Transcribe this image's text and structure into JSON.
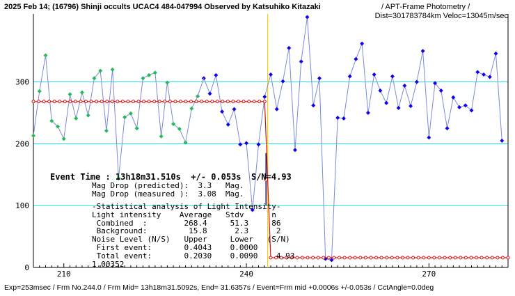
{
  "header": {
    "title": "2025 Feb 14; (16796) Shinji occults UCAC4 484-047994 Observed by Katsuhiko Kitazaki",
    "subtitle": "/ APT-Frame Photometry /",
    "subtitle2": "Dist=301783784km Veloc=13045m/sec"
  },
  "footer": {
    "text": "Exp=253msec / Frm No.244.0 / Frm Mid= 13h18m31.5092s, End= 31.6357s / Event=Frm mid +0.0006s +/-0.053s / CctAngle=0.0deg"
  },
  "stats": {
    "event_time": "Event Time : 13h18m31.510s  +/- 0.053s  S/N=4.93",
    "mag_pred": "Mag Drop (predicted):  3.3   Mag.",
    "mag_meas": "Mag Drop (measured ):  3.08  Mag.",
    "section": "-Statistical analysis of Light Intensity-",
    "head": "Light intensity    Average   Stdv      n",
    "combined": " Combined  :        268.4     51.3     86",
    "background": " Background:         15.8      2.3      2",
    "noise_head": "Noise Level (N/S)   Upper     Lower   (S/N)",
    "first": " First event:       0.4043    0.0000",
    "total": " Total event:       0.2030    0.0090    4.93",
    "extra": "1.00352"
  },
  "colors": {
    "green": "#22bb55",
    "blue": "#1100ee",
    "cyan": "#22dddd",
    "model": "#dd1111",
    "event": "#ffcc00",
    "axis": "#000000"
  },
  "chart_data": {
    "type": "line",
    "xlim": [
      205,
      283
    ],
    "ylim": [
      0,
      410
    ],
    "xticks": [
      210,
      240,
      270
    ],
    "yticks": [
      100,
      200,
      300
    ],
    "grid": "horizontal lines at y-ticks",
    "event_x": 243.5,
    "series": [
      {
        "marker": "diamond",
        "color": "green",
        "x": [
          205,
          206,
          207,
          208,
          209,
          210,
          211,
          212,
          213,
          214,
          215,
          216,
          217,
          218,
          219,
          220,
          221,
          222,
          223,
          224,
          225,
          226,
          227,
          228,
          229,
          230,
          231,
          232
        ],
        "y": [
          213,
          285,
          343,
          237,
          228,
          208,
          280,
          241,
          283,
          246,
          306,
          318,
          221,
          320,
          144,
          243,
          249,
          225,
          306,
          311,
          315,
          212,
          299,
          232,
          224,
          202,
          257,
          277
        ]
      },
      {
        "marker": "diamond",
        "color": "blue",
        "x": [
          233,
          234,
          235,
          236,
          237,
          238,
          239,
          240,
          241,
          242,
          243,
          244,
          245,
          246,
          247,
          248,
          249,
          250,
          251,
          252,
          253,
          254,
          255,
          256,
          257,
          258,
          259,
          260,
          261,
          262,
          263,
          264,
          265,
          266,
          267,
          268,
          269,
          270,
          271,
          272,
          273,
          274,
          275,
          276,
          277,
          278,
          279,
          280,
          281,
          282
        ],
        "y": [
          306,
          281,
          311,
          252,
          231,
          256,
          199,
          201,
          93,
          199,
          276,
          312,
          256,
          301,
          355,
          190,
          333,
          405,
          262,
          306,
          14,
          12,
          242,
          241,
          309,
          337,
          362,
          250,
          312,
          286,
          266,
          309,
          258,
          294,
          261,
          300,
          350,
          210,
          298,
          286,
          225,
          275,
          259,
          262,
          254,
          316,
          312,
          308,
          346,
          205
        ]
      },
      {
        "marker": "circle",
        "color": "model",
        "x": [
          205,
          243,
          244,
          283
        ],
        "y": [
          268.4,
          268.4,
          15.8,
          15.8
        ]
      }
    ]
  }
}
